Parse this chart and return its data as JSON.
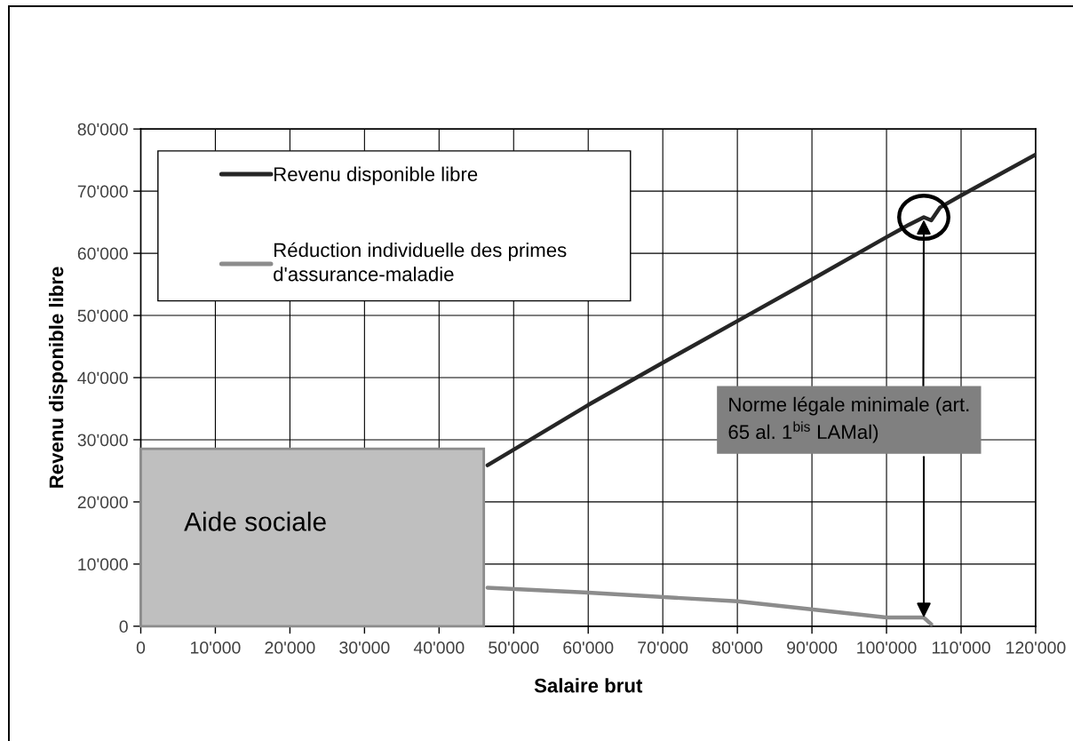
{
  "chart_data": {
    "type": "line",
    "xlabel": "Salaire brut",
    "ylabel": "Revenu disponible libre",
    "xlim": [
      0,
      120000
    ],
    "ylim": [
      0,
      80000
    ],
    "xticks": [
      0,
      {
        "value": 10000,
        "label": "10'000"
      },
      {
        "value": 20000,
        "label": "20'000"
      },
      {
        "value": 30000,
        "label": "30'000"
      },
      {
        "value": 40000,
        "label": "40'000"
      },
      {
        "value": 50000,
        "label": "50'000"
      },
      {
        "value": 60000,
        "label": "60'000"
      },
      {
        "value": 70000,
        "label": "70'000"
      },
      {
        "value": 80000,
        "label": "80'000"
      },
      {
        "value": 90000,
        "label": "90'000"
      },
      {
        "value": 100000,
        "label": "100'000"
      },
      {
        "value": 110000,
        "label": "110'000"
      },
      {
        "value": 120000,
        "label": "120'000"
      }
    ],
    "yticks": [
      0,
      {
        "value": 10000,
        "label": "10'000"
      },
      {
        "value": 20000,
        "label": "20'000"
      },
      {
        "value": 30000,
        "label": "30'000"
      },
      {
        "value": 40000,
        "label": "40'000"
      },
      {
        "value": 50000,
        "label": "50'000"
      },
      {
        "value": 60000,
        "label": "60'000"
      },
      {
        "value": 70000,
        "label": "70'000"
      },
      {
        "value": 80000,
        "label": "80'000"
      }
    ],
    "grid": true,
    "legend": "top left",
    "series": [
      {
        "name": "Revenu disponible libre",
        "color": "#262626",
        "x": [
          46500,
          50000,
          60000,
          70000,
          80000,
          90000,
          100000,
          103000,
          105000,
          106000,
          107200,
          110000,
          120000
        ],
        "values": [
          25900,
          28400,
          35600,
          42400,
          49100,
          55800,
          62600,
          64600,
          65800,
          65300,
          67400,
          69300,
          75900
        ]
      },
      {
        "name": "Réduction individuelle des primes\nd'assurance-maladie",
        "color": "#8c8c8c",
        "x": [
          46500,
          60000,
          80000,
          100000,
          105000,
          106000
        ],
        "values": [
          6200,
          5400,
          4000,
          1400,
          1400,
          300
        ]
      }
    ],
    "bands": [
      {
        "axis": "x",
        "from": 0,
        "to": 46000,
        "label": "Aide sociale",
        "color": "#bfbfbf"
      }
    ],
    "annotations": [
      {
        "text": "Norme légale minimale (art.\n65 al. 1$^{bis}$ LAMal)",
        "x": 105000,
        "y": 65800
      }
    ]
  }
}
